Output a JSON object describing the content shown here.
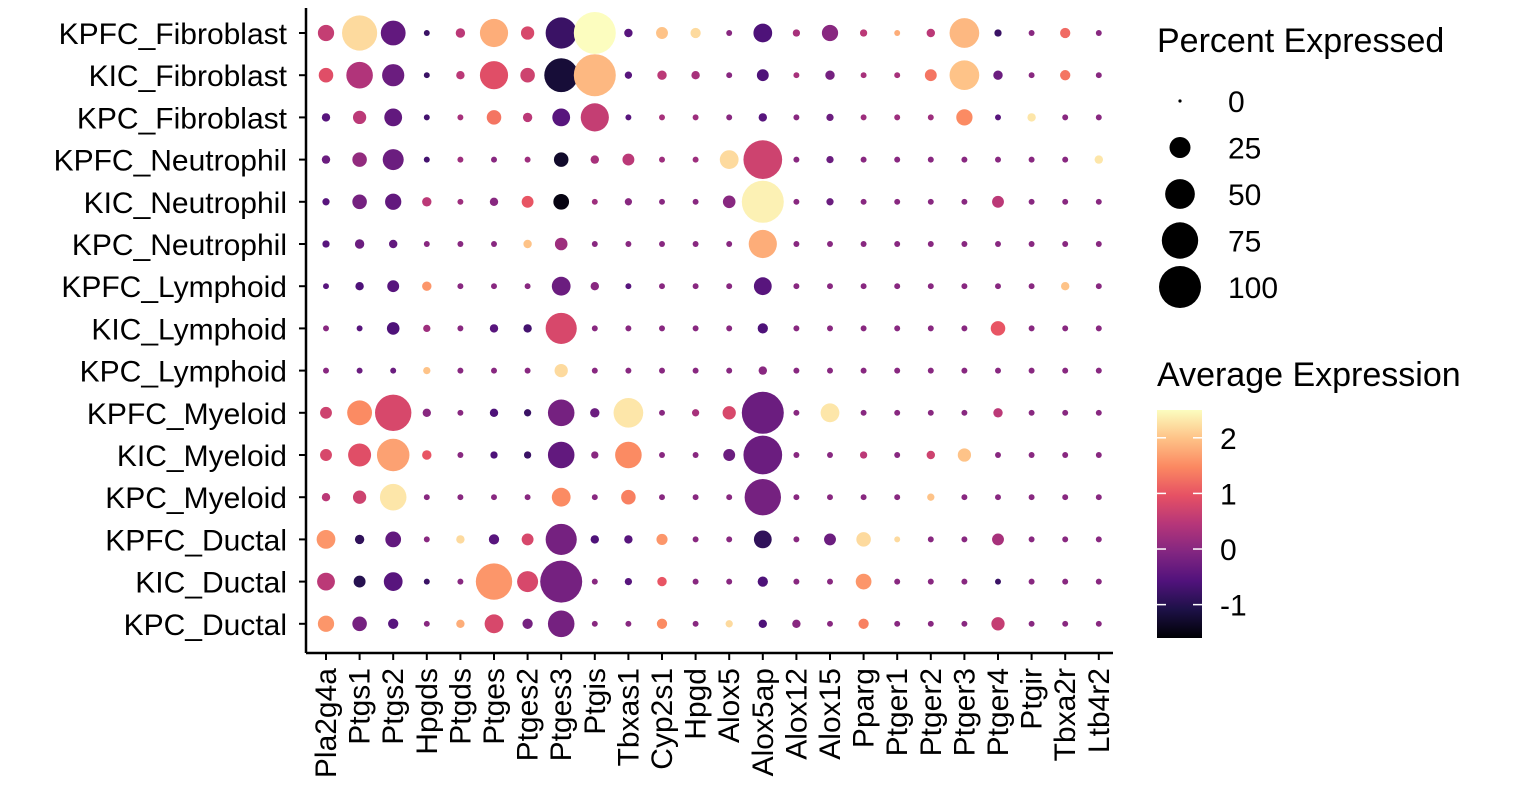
{
  "chart_data": {
    "type": "dotplot",
    "title": "",
    "xlabel": "",
    "ylabel": "",
    "genes": [
      "Pla2g4a",
      "Ptgs1",
      "Ptgs2",
      "Hpgds",
      "Ptgds",
      "Ptges",
      "Ptges2",
      "Ptges3",
      "Ptgis",
      "Tbxas1",
      "Cyp2s1",
      "Hpgd",
      "Alox5",
      "Alox5ap",
      "Alox12",
      "Alox15",
      "Pparg",
      "Ptger1",
      "Ptger2",
      "Ptger3",
      "Ptger4",
      "Ptgir",
      "Tbxa2r",
      "Ltb4r2"
    ],
    "groups": [
      "KPFC_Fibroblast",
      "KIC_Fibroblast",
      "KPC_Fibroblast",
      "KPFC_Neutrophil",
      "KIC_Neutrophil",
      "KPC_Neutrophil",
      "KPFC_Lymphoid",
      "KIC_Lymphoid",
      "KPC_Lymphoid",
      "KPFC_Myeloid",
      "KIC_Myeloid",
      "KPC_Myeloid",
      "KPFC_Ductal",
      "KIC_Ductal",
      "KPC_Ductal"
    ],
    "pct_expressed": [
      [
        15,
        70,
        35,
        2,
        5,
        45,
        10,
        55,
        100,
        4,
        8,
        6,
        2,
        20,
        3,
        15,
        3,
        2,
        4,
        50,
        3,
        2,
        6,
        2
      ],
      [
        12,
        40,
        28,
        2,
        4,
        45,
        12,
        65,
        100,
        3,
        5,
        4,
        2,
        8,
        2,
        5,
        2,
        2,
        8,
        50,
        5,
        2,
        6,
        2
      ],
      [
        4,
        10,
        18,
        2,
        2,
        12,
        5,
        18,
        45,
        2,
        2,
        2,
        2,
        4,
        2,
        3,
        2,
        2,
        2,
        15,
        2,
        4,
        2,
        2
      ],
      [
        4,
        12,
        25,
        2,
        2,
        2,
        2,
        12,
        4,
        8,
        2,
        2,
        20,
        85,
        2,
        3,
        2,
        2,
        2,
        2,
        2,
        2,
        2,
        4
      ],
      [
        3,
        12,
        15,
        5,
        2,
        4,
        8,
        14,
        2,
        3,
        2,
        2,
        9,
        100,
        2,
        3,
        2,
        2,
        2,
        2,
        8,
        2,
        2,
        2
      ],
      [
        3,
        5,
        4,
        2,
        2,
        2,
        4,
        9,
        2,
        2,
        2,
        2,
        2,
        45,
        2,
        2,
        2,
        2,
        2,
        2,
        2,
        2,
        2,
        2
      ],
      [
        2,
        4,
        8,
        5,
        2,
        2,
        2,
        20,
        4,
        2,
        2,
        2,
        2,
        18,
        2,
        2,
        2,
        2,
        2,
        2,
        2,
        2,
        4,
        2
      ],
      [
        2,
        2,
        9,
        3,
        2,
        4,
        4,
        55,
        2,
        2,
        2,
        2,
        2,
        6,
        2,
        2,
        2,
        2,
        2,
        2,
        12,
        2,
        2,
        2
      ],
      [
        2,
        2,
        2,
        3,
        2,
        2,
        2,
        10,
        2,
        2,
        2,
        2,
        2,
        4,
        2,
        2,
        2,
        2,
        2,
        2,
        2,
        2,
        2,
        2
      ],
      [
        8,
        35,
        75,
        4,
        2,
        4,
        3,
        40,
        5,
        50,
        2,
        3,
        10,
        100,
        2,
        20,
        2,
        2,
        2,
        2,
        5,
        2,
        2,
        2
      ],
      [
        8,
        30,
        60,
        5,
        2,
        3,
        3,
        40,
        3,
        40,
        2,
        2,
        8,
        85,
        2,
        2,
        3,
        2,
        4,
        10,
        2,
        2,
        2,
        2
      ],
      [
        4,
        10,
        40,
        2,
        2,
        2,
        2,
        20,
        2,
        12,
        2,
        2,
        2,
        75,
        2,
        2,
        2,
        2,
        3,
        2,
        2,
        2,
        2,
        2
      ],
      [
        20,
        5,
        14,
        2,
        4,
        6,
        8,
        55,
        4,
        4,
        7,
        2,
        2,
        18,
        2,
        8,
        12,
        2,
        2,
        2,
        8,
        2,
        2,
        2
      ],
      [
        18,
        8,
        20,
        2,
        2,
        75,
        25,
        100,
        2,
        3,
        5,
        2,
        2,
        6,
        2,
        2,
        14,
        2,
        2,
        2,
        2,
        2,
        2,
        2
      ],
      [
        15,
        12,
        6,
        2,
        4,
        20,
        6,
        40,
        2,
        2,
        6,
        2,
        3,
        4,
        4,
        2,
        6,
        2,
        2,
        2,
        10,
        2,
        2,
        2
      ]
    ],
    "avg_expression": [
      [
        0.6,
        2.2,
        -0.4,
        -0.8,
        0.5,
        1.8,
        0.8,
        -0.8,
        2.5,
        -0.5,
        2.0,
        2.2,
        0.0,
        -0.6,
        0.3,
        0.0,
        0.5,
        1.8,
        0.5,
        1.9,
        -0.8,
        0.0,
        1.2,
        0.0
      ],
      [
        0.9,
        0.4,
        -0.3,
        -0.8,
        0.5,
        0.9,
        0.7,
        -1.2,
        1.9,
        -0.5,
        0.5,
        0.3,
        0.0,
        -0.6,
        0.3,
        -0.2,
        0.3,
        0.3,
        1.3,
        2.0,
        -0.3,
        0.0,
        1.3,
        0.0
      ],
      [
        -0.5,
        0.5,
        -0.4,
        -0.7,
        0.3,
        1.3,
        0.5,
        -0.5,
        0.6,
        -0.5,
        0.3,
        0.2,
        0.0,
        -0.5,
        0.0,
        -0.3,
        0.2,
        0.2,
        0.2,
        1.5,
        -0.5,
        2.3,
        0.0,
        0.0
      ],
      [
        -0.3,
        0.1,
        -0.3,
        -0.7,
        0.2,
        0.0,
        0.2,
        -1.3,
        0.3,
        0.5,
        0.2,
        0.2,
        2.2,
        0.7,
        0.0,
        -0.3,
        0.0,
        0.0,
        0.0,
        0.0,
        0.0,
        0.0,
        0.0,
        2.3
      ],
      [
        -0.5,
        -0.2,
        -0.4,
        0.5,
        0.2,
        0.0,
        1.0,
        -1.5,
        0.2,
        0.0,
        0.0,
        0.0,
        0.0,
        2.4,
        0.0,
        -0.3,
        0.0,
        0.0,
        0.0,
        0.0,
        0.5,
        0.0,
        0.0,
        0.0
      ],
      [
        -0.5,
        -0.3,
        -0.4,
        0.0,
        0.0,
        0.0,
        2.0,
        0.2,
        0.0,
        0.0,
        0.0,
        0.0,
        0.0,
        1.8,
        0.0,
        0.0,
        0.0,
        0.0,
        0.0,
        0.0,
        0.0,
        0.0,
        0.0,
        0.0
      ],
      [
        -0.5,
        -0.6,
        -0.5,
        1.6,
        0.0,
        0.0,
        0.0,
        -0.3,
        0.0,
        -0.5,
        0.0,
        0.0,
        0.0,
        -0.5,
        0.0,
        0.0,
        0.0,
        0.0,
        0.0,
        0.0,
        0.0,
        0.0,
        2.0,
        0.0
      ],
      [
        0.0,
        -0.5,
        -0.6,
        0.2,
        0.0,
        -0.5,
        -0.7,
        0.8,
        0.0,
        0.0,
        0.0,
        0.0,
        0.0,
        -0.6,
        0.0,
        0.0,
        0.0,
        0.0,
        0.0,
        0.0,
        1.0,
        0.0,
        0.0,
        0.0
      ],
      [
        0.0,
        -0.3,
        -0.3,
        2.0,
        0.0,
        0.0,
        0.0,
        2.2,
        0.0,
        0.0,
        0.0,
        0.0,
        0.0,
        0.0,
        0.0,
        0.0,
        0.0,
        0.0,
        0.0,
        0.0,
        0.0,
        0.0,
        0.0,
        0.0
      ],
      [
        0.7,
        1.5,
        0.8,
        0.0,
        0.0,
        -0.6,
        -0.8,
        -0.2,
        -0.3,
        2.3,
        0.0,
        0.3,
        0.8,
        -0.3,
        0.0,
        2.3,
        0.0,
        0.0,
        0.0,
        0.0,
        0.5,
        0.0,
        0.0,
        0.0
      ],
      [
        0.8,
        0.9,
        1.7,
        1.0,
        0.0,
        -0.6,
        -0.8,
        -0.4,
        0.0,
        1.5,
        0.0,
        0.0,
        -0.3,
        -0.3,
        0.0,
        0.0,
        0.5,
        0.0,
        0.7,
        2.0,
        0.0,
        0.0,
        0.0,
        0.0
      ],
      [
        0.5,
        0.7,
        2.3,
        0.0,
        0.0,
        0.0,
        0.0,
        1.5,
        0.0,
        1.4,
        0.0,
        0.0,
        0.0,
        -0.2,
        0.0,
        0.0,
        0.0,
        0.0,
        2.0,
        0.0,
        0.0,
        0.0,
        0.0,
        0.0
      ],
      [
        1.6,
        -0.9,
        -0.4,
        0.0,
        2.2,
        -0.5,
        0.8,
        -0.2,
        -0.6,
        -0.5,
        1.6,
        0.0,
        0.0,
        -0.9,
        0.0,
        -0.3,
        2.2,
        2.2,
        0.0,
        0.0,
        0.3,
        0.0,
        0.0,
        0.0
      ],
      [
        0.5,
        -1.0,
        -0.5,
        -0.8,
        0.0,
        1.6,
        0.8,
        -0.2,
        0.0,
        -0.5,
        1.0,
        0.0,
        0.0,
        -0.6,
        0.0,
        0.0,
        1.6,
        0.0,
        0.0,
        0.0,
        -0.8,
        0.0,
        0.0,
        0.0
      ],
      [
        1.6,
        -0.2,
        -0.5,
        0.0,
        1.8,
        0.8,
        -0.2,
        -0.2,
        0.0,
        0.0,
        1.5,
        0.0,
        2.2,
        -0.6,
        0.0,
        0.0,
        1.4,
        0.0,
        0.0,
        0.0,
        0.6,
        0.0,
        0.0,
        0.0
      ]
    ],
    "size_legend": {
      "title": "Percent Expressed",
      "values": [
        0,
        25,
        50,
        75,
        100
      ],
      "labels": [
        "0",
        "25",
        "50",
        "75",
        "100"
      ]
    },
    "color_legend": {
      "title": "Average Expression",
      "range": [
        -1.6,
        2.5
      ],
      "ticks": [
        -1,
        0,
        1,
        2
      ],
      "tick_labels": [
        "-1",
        "0",
        "1",
        "2"
      ],
      "colormap": "magma",
      "colors": [
        "#000004",
        "#1d1147",
        "#51127c",
        "#822681",
        "#b63679",
        "#e65164",
        "#fb8861",
        "#fec287",
        "#fcfdbf"
      ]
    },
    "grid": false,
    "legend_position": "right"
  }
}
